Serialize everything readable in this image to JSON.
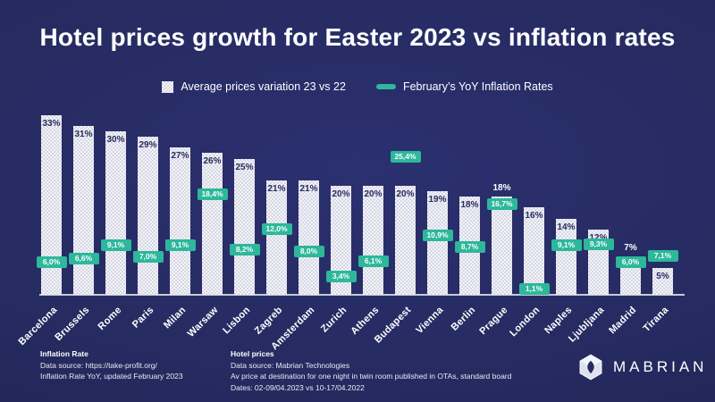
{
  "title": "Hotel prices growth for Easter 2023 vs inflation rates",
  "legend": {
    "prices_label": "Average prices variation 23 vs 22",
    "inflation_label": "February’s YoY Inflation Rates"
  },
  "colors": {
    "background": "#262b61",
    "bar_fill": "#f4f4f8",
    "bar_pattern": "#d5d7e4",
    "bar_value_text": "#272c5e",
    "inflation_marker": "#2db79b",
    "text": "#ffffff",
    "axis_line": "#c6c8d6"
  },
  "chart_data": {
    "type": "bar",
    "title": "Hotel prices growth for Easter 2023 vs inflation rates",
    "xlabel": "",
    "ylabel": "",
    "unit": "%",
    "ylim": [
      0,
      35
    ],
    "grid": false,
    "legend_position": "top",
    "categories": [
      "Barcelona",
      "Brussels",
      "Rome",
      "Paris",
      "Milan",
      "Warsaw",
      "Lisbon",
      "Zagreb",
      "Amsterdam",
      "Zurich",
      "Athens",
      "Budapest",
      "Vienna",
      "Berlin",
      "Prague",
      "London",
      "Naples",
      "Ljubljana",
      "Madrid",
      "Tirana"
    ],
    "series": [
      {
        "name": "Average prices variation 23 vs 22",
        "values": [
          33,
          31,
          30,
          29,
          27,
          26,
          25,
          21,
          21,
          20,
          20,
          20,
          19,
          18,
          18,
          16,
          14,
          12,
          7,
          5
        ],
        "labels": [
          "33%",
          "31%",
          "30%",
          "29%",
          "27%",
          "26%",
          "25%",
          "21%",
          "21%",
          "20%",
          "20%",
          "20%",
          "19%",
          "18%",
          "18%",
          "16%",
          "14%",
          "12%",
          "7%",
          "5%"
        ]
      },
      {
        "name": "February’s YoY Inflation Rates",
        "values": [
          6.0,
          6.6,
          9.1,
          7.0,
          9.1,
          18.4,
          8.2,
          12.0,
          8.0,
          3.4,
          6.1,
          25.4,
          10.9,
          8.7,
          16.7,
          1.1,
          9.1,
          9.3,
          6.0,
          7.1
        ],
        "labels": [
          "6,0%",
          "6,6%",
          "9,1%",
          "7,0%",
          "9,1%",
          "18,4%",
          "8,2%",
          "12,0%",
          "8,0%",
          "3,4%",
          "6,1%",
          "25,4%",
          "10,9%",
          "8,7%",
          "16,7%",
          "1,1%",
          "9,1%",
          "9,3%",
          "6,0%",
          "7,1%"
        ]
      }
    ]
  },
  "footer": {
    "inflation": {
      "title": "Inflation Rate",
      "line1": "Data source: https://take-profit.org/",
      "line2": "Inflation Rate YoY, updated February 2023"
    },
    "hotel": {
      "title": "Hotel prices",
      "line1": "Data source: Mabrian Technologies",
      "line2": "Av price at destination for one night in twin room published in OTAs, standard board",
      "line3": "Dates: 02-09/04.2023 vs 10-17/04.2022"
    }
  },
  "logo": {
    "text": "MABRIAN"
  }
}
